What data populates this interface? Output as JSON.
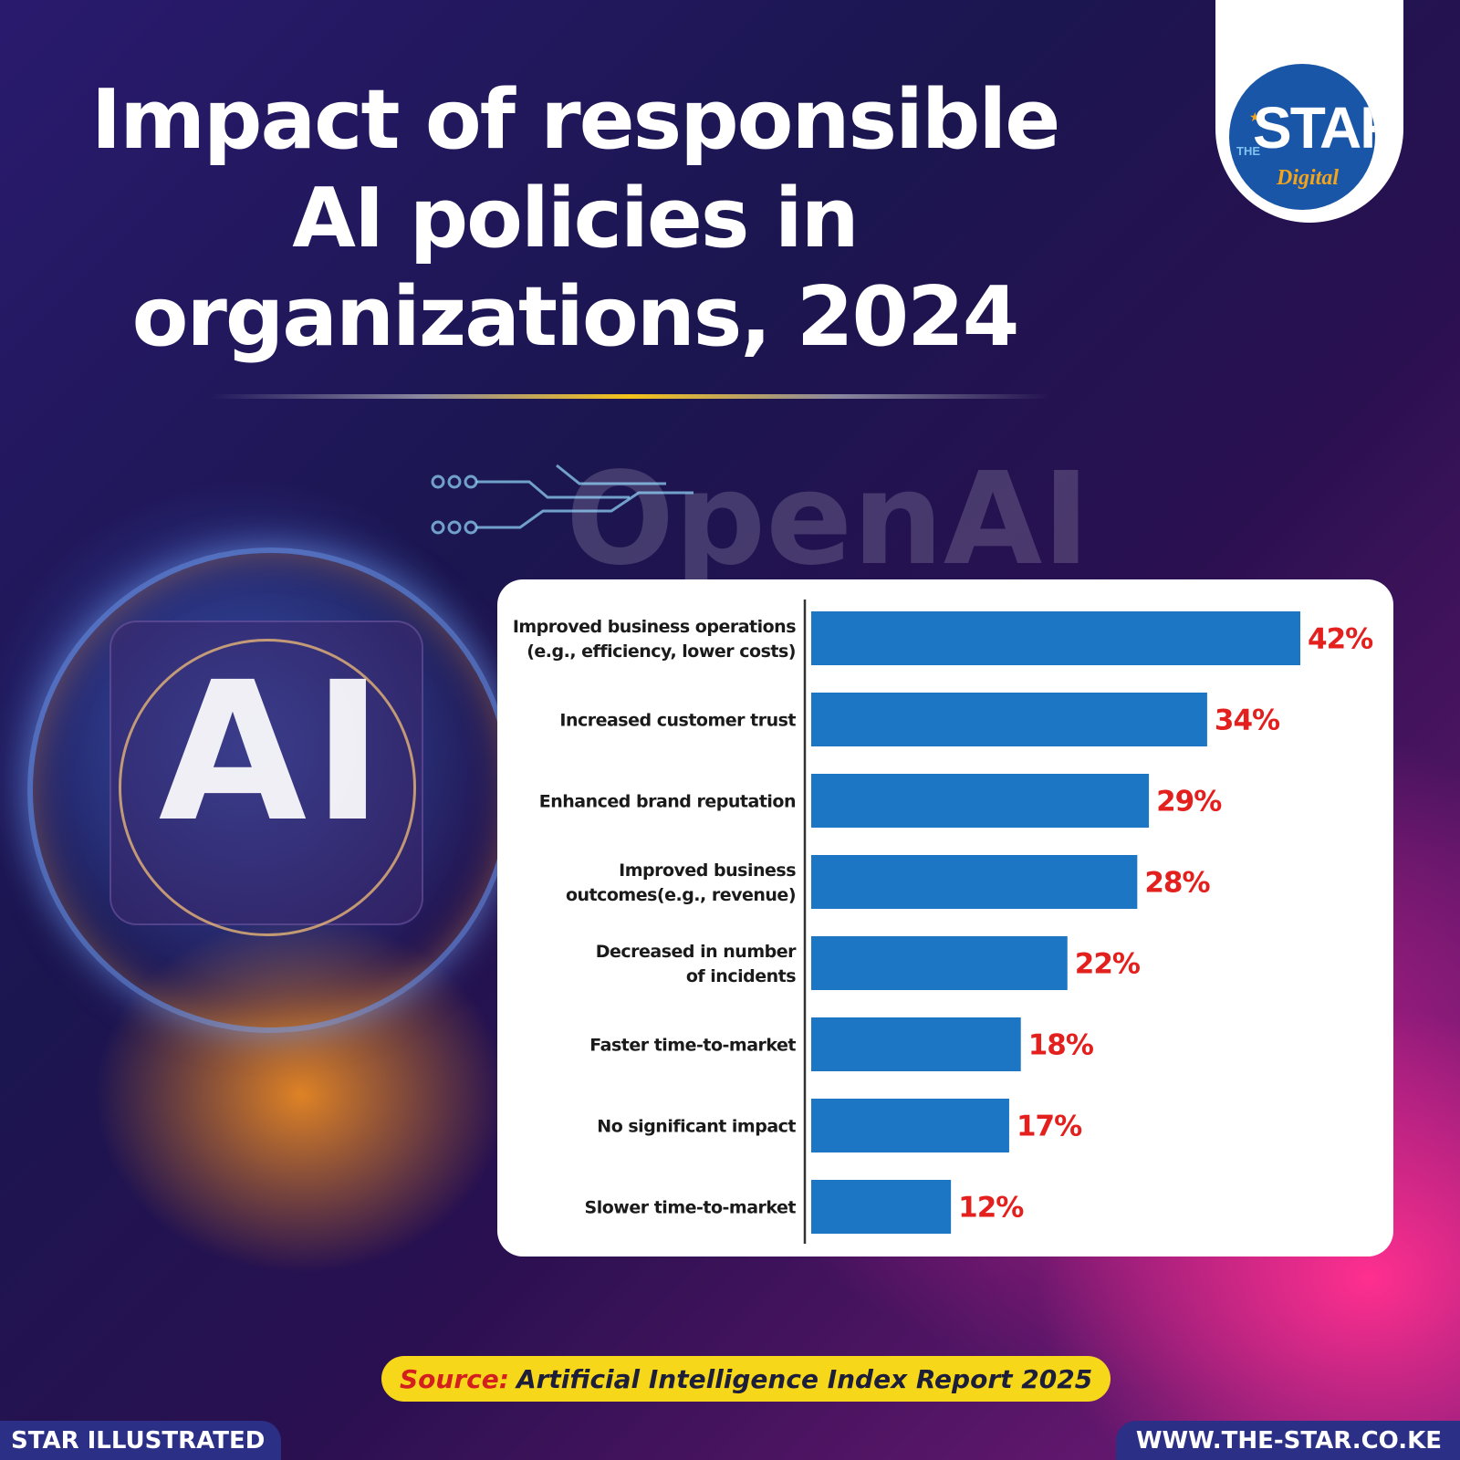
{
  "header": {
    "title_lines": [
      "Impact of responsible",
      "AI policies in",
      "organizations, 2024"
    ]
  },
  "logo": {
    "small_word": "THE",
    "main_word": "STAR",
    "sub_word": "Digital"
  },
  "background": {
    "ai_text": "AI",
    "openai_text": "OpenAI"
  },
  "chart_data": {
    "type": "bar",
    "orientation": "horizontal",
    "categories": [
      [
        "Improved business operations",
        "(e.g., efficiency, lower costs)"
      ],
      [
        "Increased customer trust"
      ],
      [
        "Enhanced brand reputation"
      ],
      [
        "Improved business",
        "outcomes(e.g., revenue)"
      ],
      [
        "Decreased in number",
        "of incidents"
      ],
      [
        "Faster time-to-market"
      ],
      [
        "No significant impact"
      ],
      [
        "Slower time-to-market"
      ]
    ],
    "values": [
      42,
      34,
      29,
      28,
      22,
      18,
      17,
      12
    ],
    "value_labels": [
      "42%",
      "34%",
      "29%",
      "28%",
      "22%",
      "18%",
      "17%",
      "12%"
    ],
    "xlim": [
      0,
      42
    ],
    "bar_color": "#1c76c4",
    "value_label_color": "#e3201e",
    "grid": false,
    "legend": false
  },
  "source": {
    "label": "Source:",
    "text": "Artificial Intelligence Index Report 2025"
  },
  "footer": {
    "left": "STAR ILLUSTRATED",
    "right": "WWW.THE-STAR.CO.KE"
  }
}
